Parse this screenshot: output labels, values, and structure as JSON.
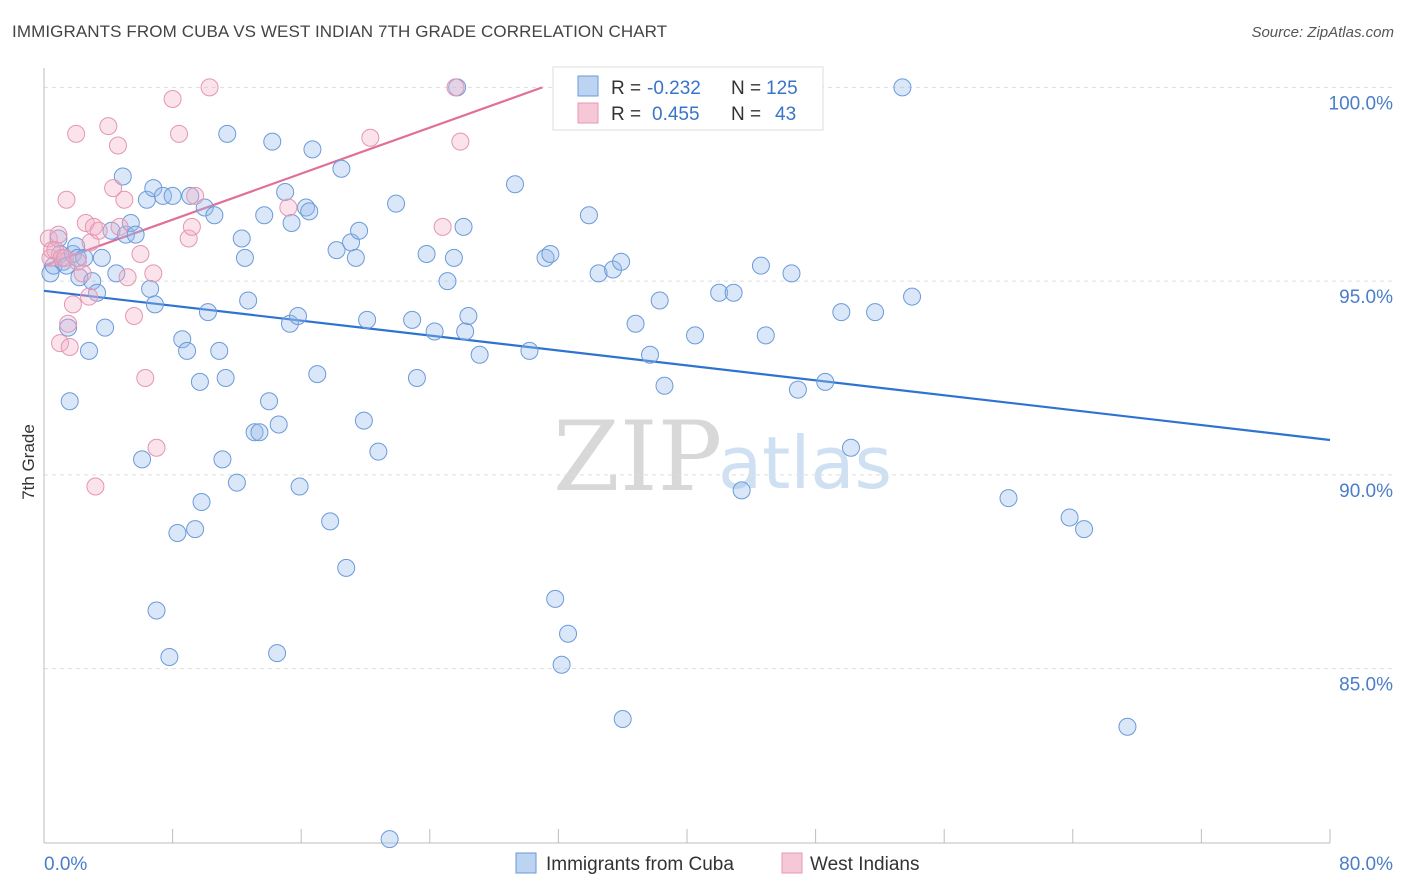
{
  "title": "IMMIGRANTS FROM CUBA VS WEST INDIAN 7TH GRADE CORRELATION CHART",
  "source": "Source: ZipAtlas.com",
  "watermark": {
    "zip": "ZIP",
    "atlas": "atlas"
  },
  "colors": {
    "cuba": "#5b8fd6",
    "west_indians": "#e889a8",
    "cuba_line": "#2f73d1",
    "west_line": "#e0709a"
  },
  "legend": {
    "r_label": "R =",
    "n_label": "N =",
    "cuba_r": "-0.232",
    "cuba_n": "125",
    "west_r": "0.455",
    "west_n": "43"
  },
  "chart_data": {
    "type": "scatter",
    "title": "IMMIGRANTS FROM CUBA VS WEST INDIAN 7TH GRADE CORRELATION CHART",
    "xlabel": "",
    "ylabel": "7th Grade",
    "xlim": [
      0,
      80
    ],
    "ylim": [
      80.5,
      100.5
    ],
    "x_tick_labels": [
      "0.0%",
      "80.0%"
    ],
    "y_ticks": [
      85,
      90,
      95,
      100
    ],
    "y_tick_labels": [
      "85.0%",
      "90.0%",
      "95.0%",
      "100.0%"
    ],
    "series": [
      {
        "name": "Immigrants from Cuba",
        "r": -0.232,
        "n": 125,
        "trend": {
          "x": [
            0,
            80
          ],
          "y": [
            94.75,
            90.9
          ]
        },
        "points": [
          [
            0.4,
            95.2
          ],
          [
            0.6,
            95.4
          ],
          [
            0.9,
            96.1
          ],
          [
            1.0,
            95.7
          ],
          [
            1.2,
            95.5
          ],
          [
            1.4,
            95.4
          ],
          [
            1.5,
            93.8
          ],
          [
            1.6,
            91.9
          ],
          [
            1.8,
            95.7
          ],
          [
            2.0,
            95.9
          ],
          [
            2.1,
            95.6
          ],
          [
            2.2,
            95.1
          ],
          [
            2.5,
            95.6
          ],
          [
            2.8,
            93.2
          ],
          [
            3.0,
            95.0
          ],
          [
            3.3,
            94.7
          ],
          [
            3.6,
            95.6
          ],
          [
            3.8,
            93.8
          ],
          [
            4.2,
            96.3
          ],
          [
            4.5,
            95.2
          ],
          [
            4.9,
            97.7
          ],
          [
            5.1,
            96.2
          ],
          [
            5.4,
            96.5
          ],
          [
            5.7,
            96.2
          ],
          [
            6.1,
            90.4
          ],
          [
            6.4,
            97.1
          ],
          [
            6.6,
            94.8
          ],
          [
            6.8,
            97.4
          ],
          [
            6.9,
            94.4
          ],
          [
            7.0,
            86.5
          ],
          [
            7.4,
            97.2
          ],
          [
            7.8,
            85.3
          ],
          [
            8.0,
            97.2
          ],
          [
            8.3,
            88.5
          ],
          [
            8.6,
            93.5
          ],
          [
            8.9,
            93.2
          ],
          [
            9.1,
            97.2
          ],
          [
            9.4,
            88.6
          ],
          [
            9.7,
            92.4
          ],
          [
            9.8,
            89.3
          ],
          [
            10.0,
            96.9
          ],
          [
            10.2,
            94.2
          ],
          [
            10.6,
            96.7
          ],
          [
            10.9,
            93.2
          ],
          [
            11.1,
            90.4
          ],
          [
            11.3,
            92.5
          ],
          [
            11.4,
            98.8
          ],
          [
            12.0,
            89.8
          ],
          [
            12.3,
            96.1
          ],
          [
            12.5,
            95.6
          ],
          [
            12.7,
            94.5
          ],
          [
            13.1,
            91.1
          ],
          [
            13.4,
            91.1
          ],
          [
            13.7,
            96.7
          ],
          [
            14.0,
            91.9
          ],
          [
            14.2,
            98.6
          ],
          [
            14.5,
            85.4
          ],
          [
            14.6,
            91.3
          ],
          [
            15.0,
            97.3
          ],
          [
            15.3,
            93.9
          ],
          [
            15.4,
            96.5
          ],
          [
            15.8,
            94.1
          ],
          [
            15.9,
            89.7
          ],
          [
            16.3,
            96.9
          ],
          [
            16.5,
            96.8
          ],
          [
            16.7,
            98.4
          ],
          [
            17.0,
            92.6
          ],
          [
            17.8,
            88.8
          ],
          [
            18.2,
            95.8
          ],
          [
            18.5,
            97.9
          ],
          [
            18.8,
            87.6
          ],
          [
            19.1,
            96.0
          ],
          [
            19.4,
            95.6
          ],
          [
            19.6,
            96.3
          ],
          [
            19.9,
            91.4
          ],
          [
            20.1,
            94.0
          ],
          [
            20.8,
            90.6
          ],
          [
            21.5,
            80.6
          ],
          [
            21.9,
            97.0
          ],
          [
            22.9,
            94.0
          ],
          [
            23.2,
            92.5
          ],
          [
            23.8,
            95.7
          ],
          [
            24.3,
            93.7
          ],
          [
            25.1,
            95.0
          ],
          [
            25.5,
            95.6
          ],
          [
            25.7,
            100.0
          ],
          [
            26.1,
            96.4
          ],
          [
            26.2,
            93.7
          ],
          [
            26.4,
            94.1
          ],
          [
            27.1,
            93.1
          ],
          [
            29.3,
            97.5
          ],
          [
            30.2,
            93.2
          ],
          [
            31.2,
            95.6
          ],
          [
            31.5,
            95.7
          ],
          [
            31.8,
            86.8
          ],
          [
            32.2,
            85.1
          ],
          [
            32.6,
            85.9
          ],
          [
            33.9,
            96.7
          ],
          [
            34.5,
            95.2
          ],
          [
            35.4,
            95.3
          ],
          [
            35.9,
            95.5
          ],
          [
            36.0,
            83.7
          ],
          [
            36.8,
            93.9
          ],
          [
            37.7,
            93.1
          ],
          [
            38.3,
            94.5
          ],
          [
            38.6,
            92.3
          ],
          [
            40.5,
            93.6
          ],
          [
            42.0,
            94.7
          ],
          [
            42.9,
            94.7
          ],
          [
            43.4,
            89.6
          ],
          [
            44.6,
            95.4
          ],
          [
            44.9,
            93.6
          ],
          [
            46.5,
            95.2
          ],
          [
            46.9,
            92.2
          ],
          [
            48.6,
            92.4
          ],
          [
            49.6,
            94.2
          ],
          [
            50.2,
            90.7
          ],
          [
            51.7,
            94.2
          ],
          [
            53.4,
            100.0
          ],
          [
            54.0,
            94.6
          ],
          [
            60.0,
            89.4
          ],
          [
            63.8,
            88.9
          ],
          [
            64.7,
            88.6
          ],
          [
            67.4,
            83.5
          ]
        ]
      },
      {
        "name": "West Indians",
        "r": 0.455,
        "n": 43,
        "trend": {
          "x": [
            0,
            31
          ],
          "y": [
            95.4,
            100.0
          ]
        },
        "points": [
          [
            0.3,
            96.1
          ],
          [
            0.4,
            95.6
          ],
          [
            0.5,
            95.8
          ],
          [
            0.7,
            95.8
          ],
          [
            0.9,
            96.2
          ],
          [
            1.0,
            93.4
          ],
          [
            1.1,
            95.6
          ],
          [
            1.3,
            95.6
          ],
          [
            1.4,
            97.1
          ],
          [
            1.5,
            93.9
          ],
          [
            1.6,
            93.3
          ],
          [
            1.8,
            94.4
          ],
          [
            2.0,
            98.8
          ],
          [
            2.1,
            95.5
          ],
          [
            2.4,
            95.2
          ],
          [
            2.6,
            96.5
          ],
          [
            2.8,
            94.6
          ],
          [
            2.9,
            96.0
          ],
          [
            3.1,
            96.4
          ],
          [
            3.2,
            89.7
          ],
          [
            3.4,
            96.3
          ],
          [
            4.0,
            99.0
          ],
          [
            4.3,
            97.4
          ],
          [
            4.6,
            98.5
          ],
          [
            4.7,
            96.4
          ],
          [
            5.0,
            97.1
          ],
          [
            5.2,
            95.1
          ],
          [
            5.6,
            94.1
          ],
          [
            6.0,
            95.7
          ],
          [
            6.3,
            92.5
          ],
          [
            6.8,
            95.2
          ],
          [
            7.0,
            90.7
          ],
          [
            8.0,
            99.7
          ],
          [
            8.4,
            98.8
          ],
          [
            9.0,
            96.1
          ],
          [
            9.2,
            96.4
          ],
          [
            9.4,
            97.2
          ],
          [
            10.3,
            100.0
          ],
          [
            15.2,
            96.9
          ],
          [
            20.3,
            98.7
          ],
          [
            24.8,
            96.4
          ],
          [
            25.6,
            100.0
          ],
          [
            25.9,
            98.6
          ]
        ]
      }
    ],
    "legend_position": "top-center"
  }
}
